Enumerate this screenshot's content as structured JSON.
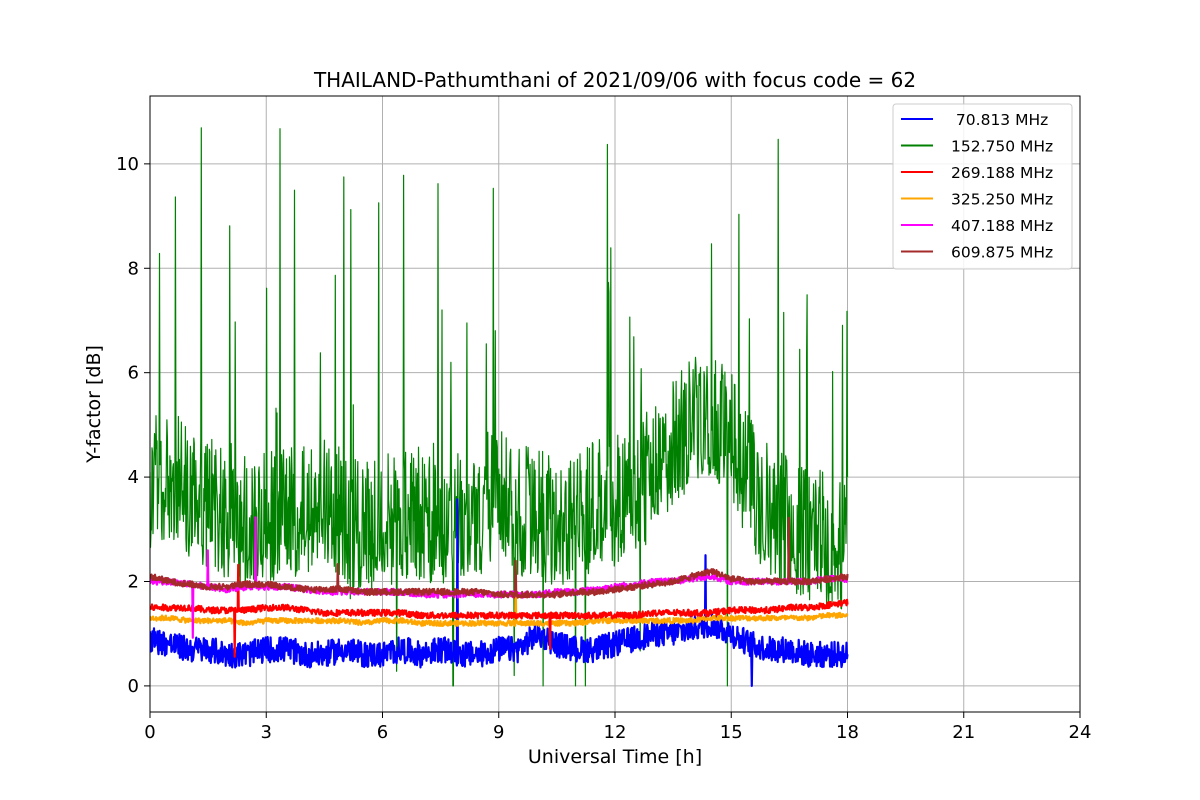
{
  "chart_data": {
    "type": "line",
    "title": "THAILAND-Pathumthani of 2021/09/06 with focus code = 62",
    "xlabel": "Universal Time [h]",
    "ylabel": "Y-factor [dB]",
    "xlim": [
      0,
      24
    ],
    "ylim": [
      -0.5,
      11.3
    ],
    "xticks": [
      0,
      3,
      6,
      9,
      12,
      15,
      18,
      21,
      24
    ],
    "yticks": [
      0,
      2,
      4,
      6,
      8,
      10
    ],
    "grid": true,
    "legend_position": "top-right",
    "series": [
      {
        "name": " 70.813 MHz",
        "color": "#0000ff",
        "x": [
          0,
          0.5,
          1,
          1.5,
          2,
          2.5,
          3,
          3.5,
          4,
          4.5,
          5,
          5.5,
          6,
          6.5,
          7,
          7.5,
          8,
          8.5,
          9,
          9.5,
          10,
          10.5,
          11,
          11.5,
          12,
          12.5,
          13,
          13.5,
          14,
          14.5,
          15,
          15.5,
          16,
          16.5,
          17,
          17.5,
          18
        ],
        "values": [
          0.9,
          0.8,
          0.7,
          0.7,
          0.6,
          0.6,
          0.7,
          0.7,
          0.6,
          0.6,
          0.7,
          0.6,
          0.6,
          0.7,
          0.6,
          0.7,
          0.6,
          0.6,
          0.7,
          0.7,
          1.0,
          0.8,
          0.7,
          0.7,
          0.8,
          0.9,
          1.0,
          1.0,
          1.1,
          1.2,
          1.0,
          0.8,
          0.7,
          0.7,
          0.6,
          0.6,
          0.6
        ]
      },
      {
        "name": "152.750 MHz",
        "color": "#008000",
        "x": [
          0,
          0.5,
          1,
          1.5,
          2,
          2.5,
          3,
          3.5,
          4,
          4.5,
          5,
          5.5,
          6,
          6.5,
          7,
          7.5,
          8,
          8.5,
          9,
          9.5,
          10,
          10.5,
          11,
          11.5,
          12,
          12.5,
          13,
          13.5,
          14,
          14.5,
          15,
          15.5,
          16,
          16.5,
          17,
          17.5,
          18
        ],
        "values": [
          3.6,
          3.8,
          3.4,
          3.2,
          3.0,
          2.8,
          2.9,
          3.0,
          3.1,
          3.3,
          2.9,
          2.7,
          2.8,
          3.0,
          3.0,
          2.8,
          2.9,
          3.0,
          3.6,
          3.0,
          3.0,
          2.8,
          3.0,
          3.1,
          3.2,
          3.4,
          3.8,
          4.4,
          4.8,
          5.0,
          4.4,
          3.6,
          3.0,
          2.8,
          2.6,
          2.5,
          2.4
        ]
      },
      {
        "name": "269.188 MHz",
        "color": "#ff0000",
        "x": [
          0,
          0.5,
          1,
          1.5,
          2,
          2.5,
          3,
          3.5,
          4,
          4.5,
          5,
          5.5,
          6,
          6.5,
          7,
          7.5,
          8,
          8.5,
          9,
          9.5,
          10,
          10.5,
          11,
          11.5,
          12,
          12.5,
          13,
          13.5,
          14,
          14.5,
          15,
          15.5,
          16,
          16.5,
          17,
          17.5,
          18
        ],
        "values": [
          1.5,
          1.5,
          1.5,
          1.45,
          1.45,
          1.45,
          1.5,
          1.5,
          1.45,
          1.4,
          1.4,
          1.4,
          1.4,
          1.4,
          1.35,
          1.35,
          1.35,
          1.35,
          1.35,
          1.35,
          1.35,
          1.35,
          1.35,
          1.35,
          1.35,
          1.35,
          1.4,
          1.4,
          1.4,
          1.4,
          1.45,
          1.45,
          1.45,
          1.5,
          1.5,
          1.55,
          1.6
        ]
      },
      {
        "name": "325.250 MHz",
        "color": "#ffa500",
        "x": [
          0,
          0.5,
          1,
          1.5,
          2,
          2.5,
          3,
          3.5,
          4,
          4.5,
          5,
          5.5,
          6,
          6.5,
          7,
          7.5,
          8,
          8.5,
          9,
          9.5,
          10,
          10.5,
          11,
          11.5,
          12,
          12.5,
          13,
          13.5,
          14,
          14.5,
          15,
          15.5,
          16,
          16.5,
          17,
          17.5,
          18
        ],
        "values": [
          1.3,
          1.3,
          1.25,
          1.25,
          1.25,
          1.2,
          1.25,
          1.25,
          1.25,
          1.25,
          1.25,
          1.2,
          1.25,
          1.25,
          1.2,
          1.2,
          1.2,
          1.2,
          1.2,
          1.2,
          1.2,
          1.2,
          1.2,
          1.25,
          1.25,
          1.25,
          1.25,
          1.25,
          1.25,
          1.3,
          1.3,
          1.3,
          1.3,
          1.3,
          1.3,
          1.35,
          1.35
        ]
      },
      {
        "name": "407.188 MHz",
        "color": "#ff00ff",
        "x": [
          0,
          0.5,
          1,
          1.5,
          2,
          2.5,
          3,
          3.5,
          4,
          4.5,
          5,
          5.5,
          6,
          6.5,
          7,
          7.5,
          8,
          8.5,
          9,
          9.5,
          10,
          10.5,
          11,
          11.5,
          12,
          12.5,
          13,
          13.5,
          14,
          14.5,
          15,
          15.5,
          16,
          16.5,
          17,
          17.5,
          18
        ],
        "values": [
          2.0,
          2.0,
          1.95,
          1.9,
          1.85,
          1.9,
          1.9,
          1.9,
          1.85,
          1.8,
          1.8,
          1.8,
          1.8,
          1.8,
          1.75,
          1.75,
          1.75,
          1.75,
          1.75,
          1.75,
          1.75,
          1.8,
          1.8,
          1.85,
          1.9,
          1.95,
          2.0,
          2.0,
          2.05,
          2.1,
          2.0,
          2.0,
          2.0,
          2.0,
          2.0,
          2.05,
          2.05
        ]
      },
      {
        "name": "609.875 MHz",
        "color": "#a52a2a",
        "x": [
          0,
          0.5,
          1,
          1.5,
          2,
          2.5,
          3,
          3.5,
          4,
          4.5,
          5,
          5.5,
          6,
          6.5,
          7,
          7.5,
          8,
          8.5,
          9,
          9.5,
          10,
          10.5,
          11,
          11.5,
          12,
          12.5,
          13,
          13.5,
          14,
          14.5,
          15,
          15.5,
          16,
          16.5,
          17,
          17.5,
          18
        ],
        "values": [
          2.1,
          2.0,
          1.95,
          1.9,
          1.9,
          1.95,
          1.95,
          1.9,
          1.85,
          1.85,
          1.85,
          1.8,
          1.8,
          1.8,
          1.8,
          1.8,
          1.8,
          1.8,
          1.75,
          1.75,
          1.75,
          1.75,
          1.8,
          1.8,
          1.85,
          1.9,
          1.95,
          2.0,
          2.1,
          2.2,
          2.05,
          2.0,
          2.0,
          2.0,
          2.0,
          2.05,
          2.1
        ]
      }
    ]
  }
}
